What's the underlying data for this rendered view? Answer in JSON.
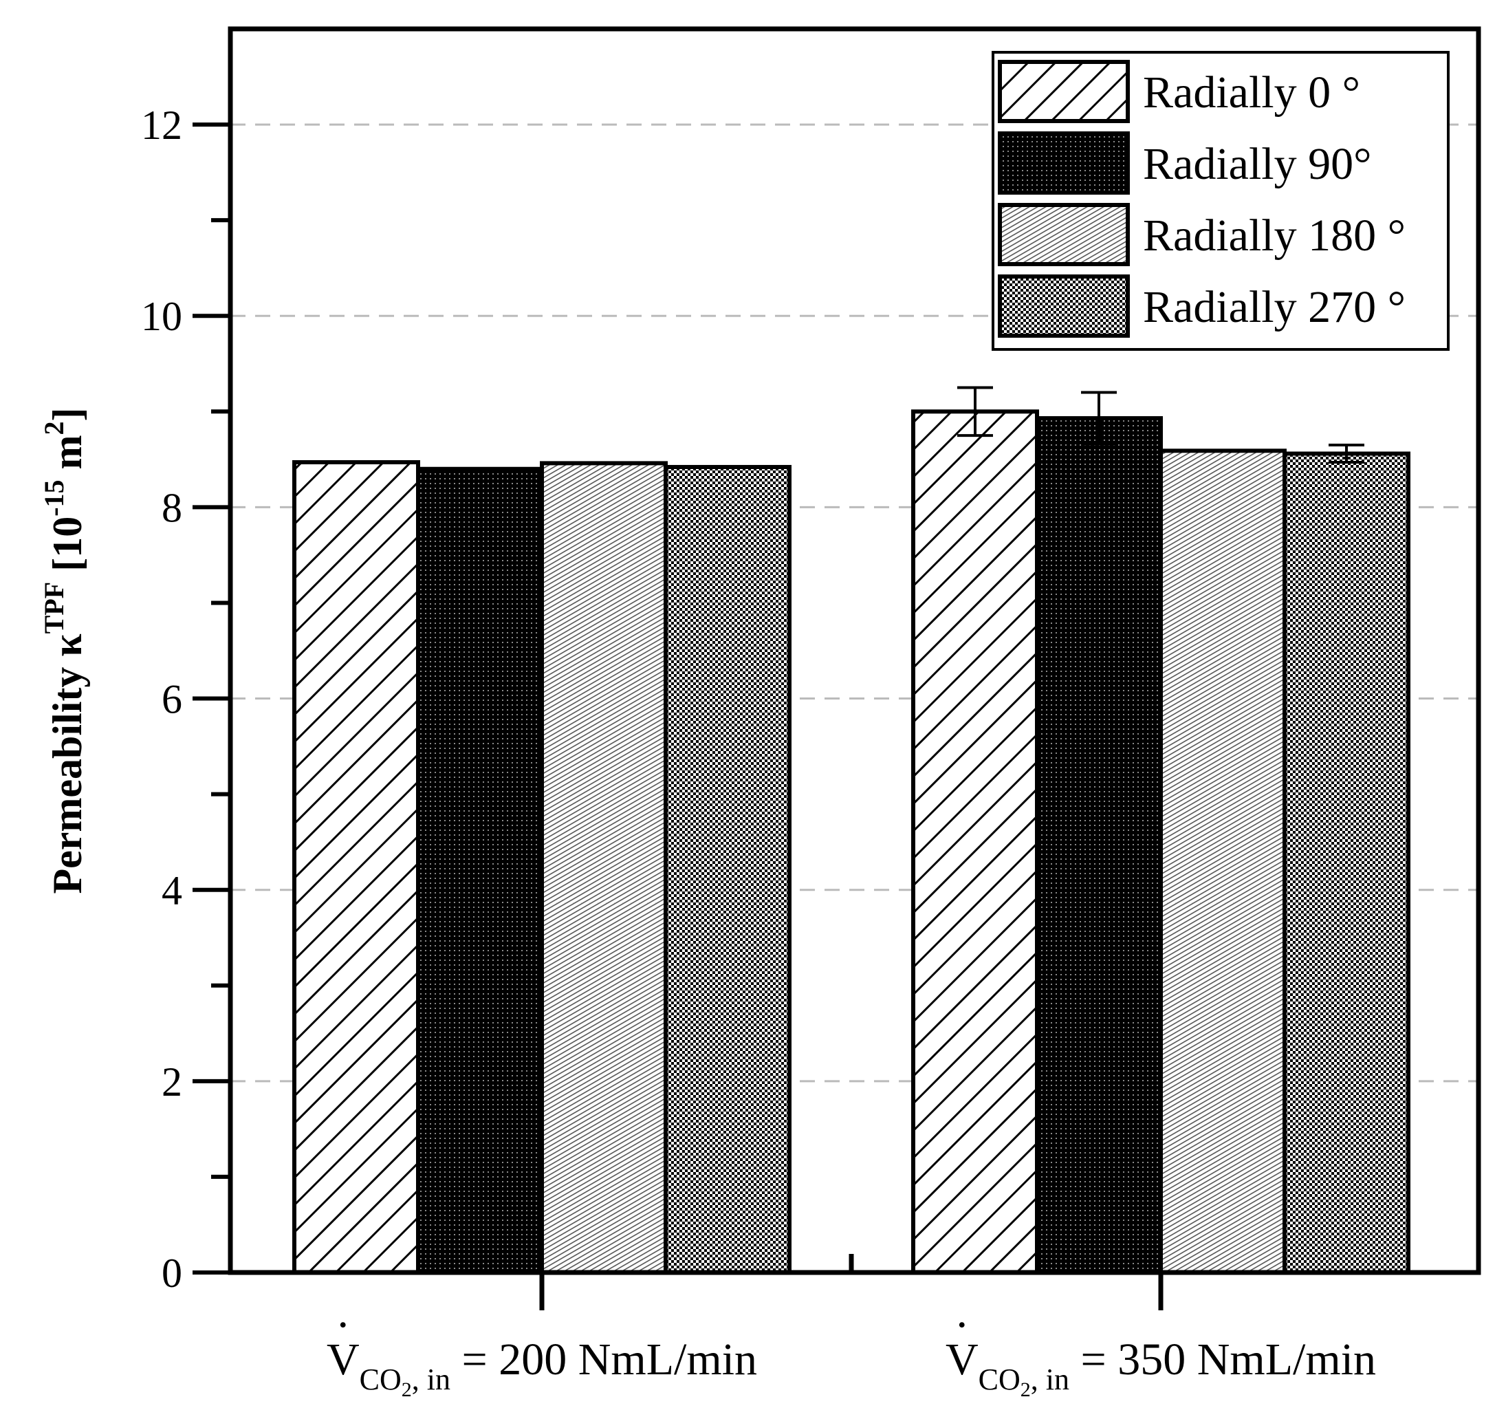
{
  "chart_data": {
    "type": "bar",
    "title": "",
    "ylabel": {
      "main": "Permeability κ",
      "superscript": "TPF",
      "unit_open": " [10",
      "unit_exp": "-15",
      "unit_m": " m",
      "unit_m_exp": "2",
      "unit_close": "]"
    },
    "ylim": [
      0,
      13
    ],
    "yticks": [
      0,
      2,
      4,
      6,
      8,
      10,
      12
    ],
    "grid": "horizontal dashed",
    "legend_position": "top-right",
    "categories": [
      {
        "v": "V",
        "dot": "·",
        "sub": "CO",
        "sub2": "2",
        "sub3": ", in",
        "rest": " = 200 NmL/min"
      },
      {
        "v": "V",
        "dot": "·",
        "sub": "CO",
        "sub2": "2",
        "sub3": ", in",
        "rest": " = 350 NmL/min"
      }
    ],
    "series": [
      {
        "name": "Radially 0 °",
        "pattern": "diag",
        "values": [
          8.47,
          9.0
        ],
        "errors": [
          0,
          0.25
        ]
      },
      {
        "name": "Radially 90°",
        "pattern": "dots",
        "values": [
          8.4,
          8.93
        ],
        "errors": [
          0,
          0.27
        ]
      },
      {
        "name": "Radially 180 °",
        "pattern": "lines",
        "values": [
          8.46,
          8.59
        ],
        "errors": [
          0,
          0
        ]
      },
      {
        "name": "Radially 270 °",
        "pattern": "check",
        "values": [
          8.42,
          8.56
        ],
        "errors": [
          0,
          0.09
        ]
      }
    ]
  }
}
